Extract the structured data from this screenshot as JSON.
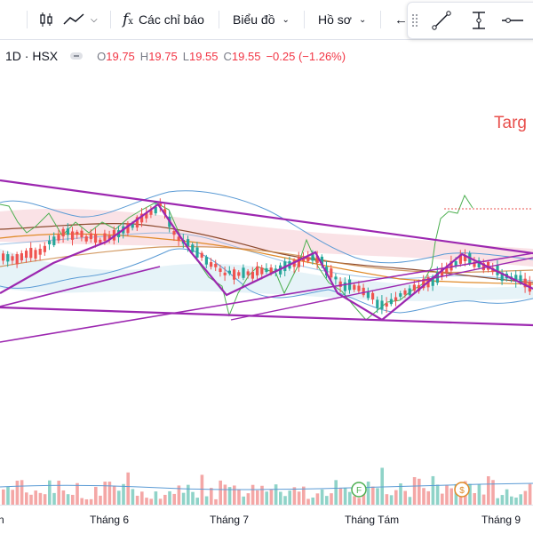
{
  "toolbar": {
    "indicators_label": "Các chỉ báo",
    "chart_label": "Biểu đồ",
    "profile_label": "Hồ sơ"
  },
  "legend": {
    "interval_exchange": "1D · HSX",
    "open_label": "O",
    "open": "19.75",
    "high_label": "H",
    "high": "19.75",
    "low_label": "L",
    "low": "19.55",
    "close_label": "C",
    "close": "19.55",
    "change": "−0.25 (−1.26%)"
  },
  "annotation": {
    "target_text": "Targ"
  },
  "markers": {
    "financial": "F",
    "dividend": "$"
  },
  "x_axis": {
    "labels": [
      "Tháng 6",
      "Tháng 7",
      "Tháng Tám",
      "Tháng 9"
    ]
  },
  "colors": {
    "up": "#26a69a",
    "down": "#ef5350",
    "pattern": "#9c27b0",
    "indicator_line": "#4caf50",
    "bollinger": "#5b9bd5",
    "ma_orange": "#e08a28",
    "target": "#e8504d"
  },
  "icons": [
    "candles-icon",
    "line-chart-icon",
    "function-icon",
    "chevron-down-icon",
    "undo-icon",
    "line-tool-icon",
    "measure-icon",
    "horizontal-line-icon"
  ]
}
